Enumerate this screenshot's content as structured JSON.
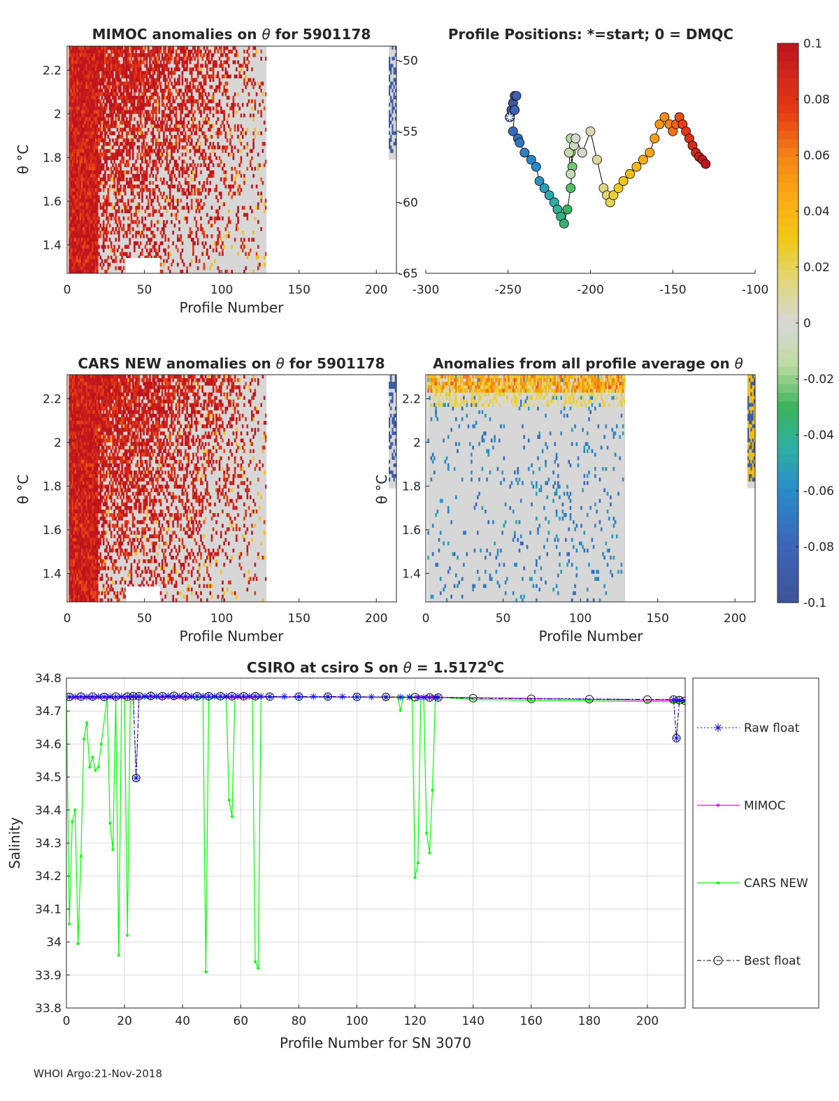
{
  "footer": "WHOI Argo:21-Nov-2018",
  "colorbar": {
    "ticks": [
      "0.1",
      "0.08",
      "0.06",
      "0.04",
      "0.02",
      "0",
      "-0.02",
      "-0.04",
      "-0.06",
      "-0.08",
      "-0.1"
    ],
    "values": [
      0.1,
      0.08,
      0.06,
      0.04,
      0.02,
      0,
      -0.02,
      -0.04,
      -0.06,
      -0.08,
      -0.1
    ],
    "range": [
      -0.1,
      0.1
    ]
  },
  "chart_data": [
    {
      "type": "heatmap",
      "title_a": "MIMOC anomalies on ",
      "title_b": "  for 5901178",
      "xlabel": "Profile Number",
      "ylabel": "θ °C",
      "x_ticks": [
        "0",
        "50",
        "100",
        "150",
        "200"
      ],
      "y_ticks": [
        "2.2",
        "2",
        "1.8",
        "1.6",
        "1.4"
      ],
      "xlim": [
        0,
        213
      ],
      "ylim": [
        1.27,
        2.31
      ],
      "data_columns": [
        1,
        128,
        208,
        212
      ],
      "dominant": "red"
    },
    {
      "type": "scatter",
      "title": "Profile Positions: *=start; 0 = DMQC",
      "x_ticks": [
        "-300",
        "-250",
        "-200",
        "-150",
        "-100"
      ],
      "y_ticks": [
        "-50",
        "-55",
        "-60",
        "-65"
      ],
      "xlim": [
        -300,
        -100
      ],
      "ylim": [
        -65,
        -49
      ],
      "lon": [
        -249,
        -248,
        -247,
        -246,
        -245,
        -246,
        -247,
        -244,
        -243,
        -240,
        -236,
        -233,
        -231,
        -228,
        -225,
        -222,
        -220,
        -218,
        -216,
        -214,
        -212,
        -211,
        -212,
        -212,
        -213,
        -212,
        -210,
        -209,
        -205,
        -200,
        -196,
        -192,
        -190,
        -188,
        -186,
        -183,
        -180,
        -176,
        -172,
        -168,
        -164,
        -161,
        -158,
        -155,
        -152,
        -150,
        -148,
        -146,
        -144,
        -142,
        -140,
        -138,
        -136,
        -134,
        -132,
        -130
      ],
      "lat": [
        -54.0,
        -53.5,
        -53.0,
        -52.5,
        -52.5,
        -53.5,
        -55.0,
        -55.5,
        -55.8,
        -56.5,
        -57.0,
        -57.5,
        -58.5,
        -59.0,
        -59.5,
        -60.0,
        -60.5,
        -61.0,
        -61.5,
        -60.5,
        -59.0,
        -57.5,
        -56.5,
        -55.5,
        -56.5,
        -58.0,
        -56.0,
        -55.5,
        -56.5,
        -55.0,
        -57.0,
        -59.0,
        -59.5,
        -60.0,
        -59.5,
        -59.0,
        -58.5,
        -58.0,
        -57.5,
        -57.0,
        -56.5,
        -55.5,
        -54.5,
        -54.0,
        -54.5,
        -55.0,
        -54.5,
        -54.0,
        -54.5,
        -55.0,
        -55.5,
        -56.0,
        -56.5,
        -56.8,
        -57.0,
        -57.3
      ]
    },
    {
      "type": "heatmap",
      "title_a": "CARS NEW anomalies on ",
      "title_b": " for 5901178",
      "xlabel": "Profile Number",
      "ylabel": "θ °C",
      "x_ticks": [
        "0",
        "50",
        "100",
        "150",
        "200"
      ],
      "y_ticks": [
        "2.2",
        "2",
        "1.8",
        "1.6",
        "1.4"
      ],
      "xlim": [
        0,
        213
      ],
      "ylim": [
        1.27,
        2.31
      ],
      "dominant": "red"
    },
    {
      "type": "heatmap",
      "title_a": "Anomalies from all profile average on ",
      "title_b": "",
      "xlabel": "Profile Number",
      "ylabel": "θ °C",
      "x_ticks": [
        "0",
        "50",
        "100",
        "150",
        "200"
      ],
      "y_ticks": [
        "2.2",
        "2",
        "1.8",
        "1.6",
        "1.4"
      ],
      "xlim": [
        0,
        213
      ],
      "ylim": [
        1.27,
        2.31
      ],
      "dominant": "grey"
    },
    {
      "type": "line",
      "title_a": "CSIRO at csiro S on ",
      "title_b": " = 1.5172",
      "title_c": "C",
      "xlabel": "Profile Number for SN 3070",
      "ylabel": "Salinity",
      "xlim": [
        0,
        213
      ],
      "ylim": [
        33.8,
        34.8
      ],
      "x_ticks": [
        0,
        20,
        40,
        60,
        80,
        100,
        120,
        140,
        160,
        180,
        200
      ],
      "y_ticks": [
        34.8,
        34.7,
        34.6,
        34.5,
        34.4,
        34.3,
        34.2,
        34.1,
        34.0,
        33.9,
        33.8
      ],
      "y_tick_labels": [
        "34.8",
        "34.7",
        "34.6",
        "34.5",
        "34.4",
        "34.3",
        "34.2",
        "34.1",
        "34",
        "33.9",
        "33.8"
      ],
      "grid": true,
      "legend_position": "outside-right",
      "series": [
        {
          "name": "Raw float",
          "color": "#0000ff",
          "x": [
            1,
            3,
            5,
            7,
            9,
            11,
            13,
            15,
            17,
            19,
            21,
            23,
            24,
            25,
            27,
            29,
            31,
            33,
            35,
            37,
            39,
            41,
            43,
            45,
            47,
            49,
            51,
            53,
            55,
            57,
            59,
            61,
            63,
            65,
            67,
            70,
            75,
            80,
            85,
            90,
            95,
            100,
            105,
            110,
            115,
            118,
            121,
            123,
            125,
            127,
            128,
            209,
            210,
            211,
            213
          ],
          "y": [
            34.743,
            34.743,
            34.744,
            34.743,
            34.743,
            34.744,
            34.743,
            34.744,
            34.743,
            34.744,
            34.744,
            34.745,
            34.497,
            34.745,
            34.745,
            34.746,
            34.745,
            34.745,
            34.746,
            34.745,
            34.745,
            34.745,
            34.745,
            34.745,
            34.745,
            34.745,
            34.745,
            34.745,
            34.745,
            34.745,
            34.745,
            34.745,
            34.745,
            34.745,
            34.745,
            34.744,
            34.744,
            34.744,
            34.744,
            34.744,
            34.744,
            34.743,
            34.743,
            34.742,
            34.742,
            34.742,
            34.741,
            34.741,
            34.741,
            34.741,
            34.741,
            34.735,
            34.618,
            34.733,
            34.731
          ]
        },
        {
          "name": "MIMOC",
          "color": "#ff00ff",
          "x": [
            1,
            2,
            3,
            4,
            5,
            6,
            7,
            8,
            9,
            10,
            11,
            12,
            13,
            14,
            15,
            16,
            17,
            18,
            19,
            20,
            21,
            22,
            23,
            24,
            25,
            28,
            30,
            31,
            32,
            33,
            34,
            35,
            36,
            37,
            38,
            39,
            40,
            41,
            42,
            43,
            55,
            56,
            57,
            58,
            59,
            60,
            61,
            62,
            63,
            64,
            65,
            66,
            67,
            120,
            121,
            122,
            123,
            124,
            125,
            126,
            127,
            128,
            209,
            210,
            211,
            213
          ],
          "y": [
            34.742,
            34.742,
            34.742,
            34.742,
            34.742,
            34.742,
            34.742,
            34.742,
            34.742,
            34.742,
            34.742,
            34.742,
            34.742,
            34.742,
            34.742,
            34.742,
            34.742,
            34.742,
            34.742,
            34.742,
            34.742,
            34.742,
            34.742,
            34.742,
            34.742,
            34.742,
            34.742,
            34.742,
            34.742,
            34.742,
            34.742,
            34.742,
            34.742,
            34.742,
            34.742,
            34.742,
            34.742,
            34.742,
            34.742,
            34.742,
            34.742,
            34.742,
            34.742,
            34.742,
            34.742,
            34.742,
            34.742,
            34.742,
            34.742,
            34.742,
            34.742,
            34.742,
            34.742,
            34.742,
            34.742,
            34.742,
            34.742,
            34.742,
            34.742,
            34.742,
            34.742,
            34.742,
            34.732,
            34.732,
            34.732,
            34.732
          ]
        },
        {
          "name": "CARS NEW",
          "color": "#00ff00",
          "x": [
            0,
            1,
            2,
            3,
            4,
            5,
            6,
            7,
            8,
            9,
            10,
            11,
            12,
            14,
            15,
            16,
            17,
            18,
            19,
            20,
            21,
            22,
            23,
            24,
            25,
            26,
            27,
            28,
            29,
            30,
            31,
            32,
            33,
            34,
            35,
            36,
            37,
            38,
            39,
            40,
            41,
            42,
            43,
            44,
            45,
            46,
            47,
            48,
            49,
            50,
            51,
            52,
            53,
            54,
            55,
            56,
            57,
            58,
            59,
            60,
            61,
            62,
            63,
            64,
            65,
            66,
            67,
            70,
            80,
            90,
            100,
            110,
            114,
            115,
            116,
            118,
            119,
            120,
            121,
            122,
            123,
            124,
            125,
            126,
            127,
            128,
            140,
            160,
            180,
            200,
            209,
            210,
            211,
            213
          ],
          "y": [
            34.742,
            34.055,
            34.365,
            34.4,
            33.995,
            34.26,
            34.615,
            34.665,
            34.53,
            34.56,
            34.52,
            34.53,
            34.6,
            34.742,
            34.36,
            34.28,
            34.742,
            33.96,
            34.742,
            34.742,
            34.02,
            34.742,
            34.742,
            34.742,
            34.742,
            34.742,
            34.742,
            34.742,
            34.742,
            34.742,
            34.742,
            34.742,
            34.742,
            34.742,
            34.742,
            34.742,
            34.742,
            34.742,
            34.742,
            34.742,
            34.742,
            34.742,
            34.742,
            34.742,
            34.742,
            34.742,
            34.742,
            33.91,
            34.742,
            34.742,
            34.742,
            34.742,
            34.742,
            34.742,
            34.742,
            34.43,
            34.38,
            34.742,
            34.742,
            34.742,
            34.742,
            34.742,
            34.742,
            34.742,
            33.94,
            33.92,
            34.742,
            34.742,
            34.742,
            34.742,
            34.742,
            34.742,
            34.742,
            34.702,
            34.742,
            34.742,
            34.742,
            34.195,
            34.24,
            34.742,
            34.742,
            34.33,
            34.27,
            34.46,
            34.742,
            34.742,
            34.735,
            34.733,
            34.731,
            34.729,
            34.728,
            34.728,
            34.728,
            34.728
          ]
        },
        {
          "name": "Best float",
          "color": "#000000",
          "x": [
            1,
            5,
            9,
            13,
            17,
            21,
            23,
            24,
            25,
            29,
            33,
            37,
            41,
            45,
            49,
            53,
            57,
            61,
            65,
            70,
            80,
            90,
            100,
            110,
            120,
            125,
            128,
            140,
            160,
            180,
            200,
            209,
            210,
            211,
            213
          ],
          "y": [
            34.743,
            34.744,
            34.744,
            34.743,
            34.744,
            34.744,
            34.745,
            34.497,
            34.745,
            34.746,
            34.745,
            34.746,
            34.745,
            34.745,
            34.745,
            34.745,
            34.745,
            34.745,
            34.745,
            34.744,
            34.744,
            34.744,
            34.743,
            34.743,
            34.742,
            34.741,
            34.741,
            34.739,
            34.737,
            34.736,
            34.735,
            34.735,
            34.618,
            34.733,
            34.731
          ]
        }
      ]
    }
  ]
}
